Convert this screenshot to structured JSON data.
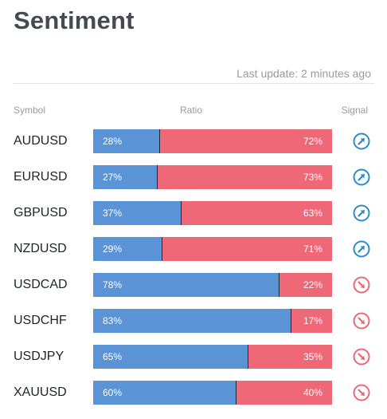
{
  "header": {
    "title": "Sentiment",
    "last_update": "Last update: 2 minutes ago"
  },
  "columns": {
    "symbol": "Symbol",
    "ratio": "Ratio",
    "signal": "Signal"
  },
  "colors": {
    "long": "#5b93d7",
    "short": "#ee6878",
    "signal_up": "#2d8ac7",
    "signal_down": "#ea6878"
  },
  "rows": [
    {
      "symbol": "AUDUSD",
      "long": 28,
      "short": 72,
      "long_label": "28%",
      "short_label": "72%",
      "signal": "up-right-arrow-icon"
    },
    {
      "symbol": "EURUSD",
      "long": 27,
      "short": 73,
      "long_label": "27%",
      "short_label": "73%",
      "signal": "up-right-arrow-icon"
    },
    {
      "symbol": "GBPUSD",
      "long": 37,
      "short": 63,
      "long_label": "37%",
      "short_label": "63%",
      "signal": "up-right-arrow-icon"
    },
    {
      "symbol": "NZDUSD",
      "long": 29,
      "short": 71,
      "long_label": "29%",
      "short_label": "71%",
      "signal": "up-right-arrow-icon"
    },
    {
      "symbol": "USDCAD",
      "long": 78,
      "short": 22,
      "long_label": "78%",
      "short_label": "22%",
      "signal": "down-right-arrow-icon"
    },
    {
      "symbol": "USDCHF",
      "long": 83,
      "short": 17,
      "long_label": "83%",
      "short_label": "17%",
      "signal": "down-right-arrow-icon"
    },
    {
      "symbol": "USDJPY",
      "long": 65,
      "short": 35,
      "long_label": "65%",
      "short_label": "35%",
      "signal": "down-right-arrow-icon"
    },
    {
      "symbol": "XAUUSD",
      "long": 60,
      "short": 40,
      "long_label": "60%",
      "short_label": "40%",
      "signal": "down-right-arrow-icon"
    }
  ]
}
